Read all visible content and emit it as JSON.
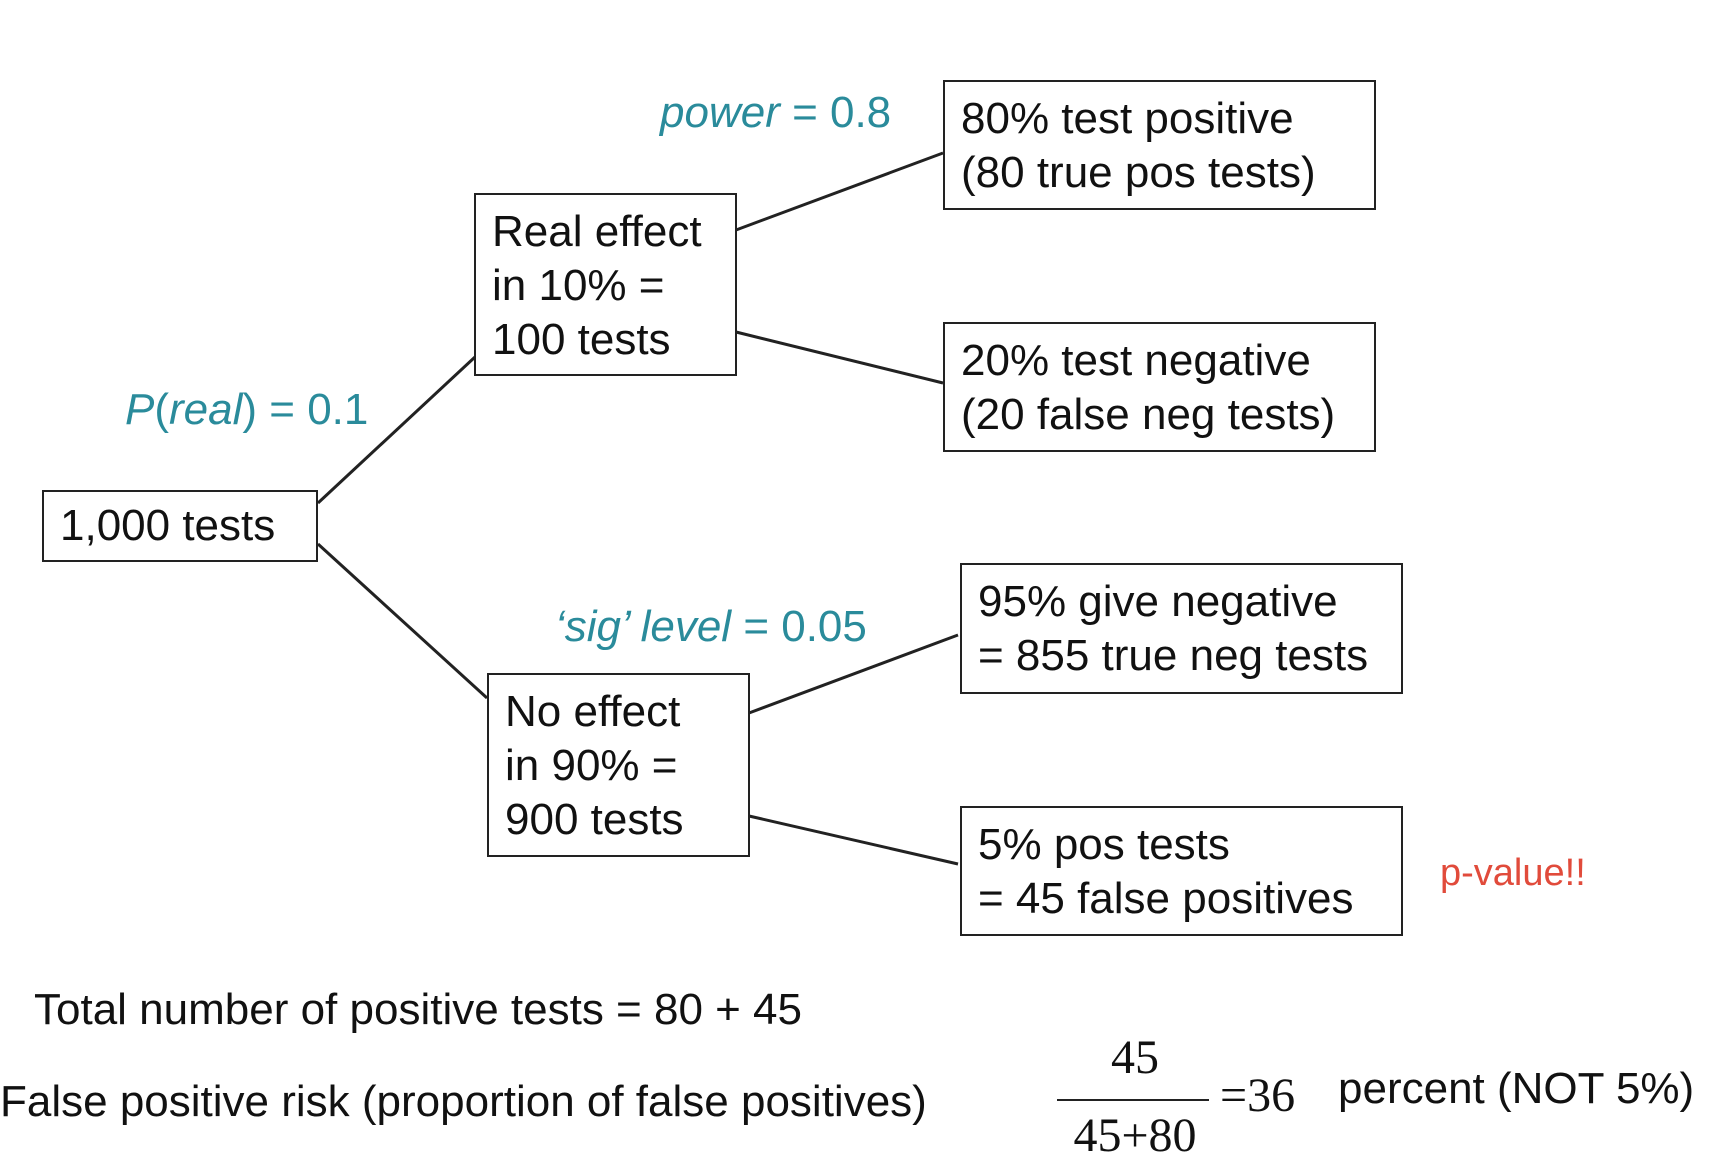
{
  "nodes": {
    "root": [
      "1,000 tests"
    ],
    "real": [
      "Real effect",
      "in 10% =",
      "100 tests"
    ],
    "none": [
      "No effect",
      "in 90%  =",
      "900 tests"
    ],
    "true_pos": [
      "80% test positive",
      "(80 true pos tests)"
    ],
    "false_neg": [
      "20% test negative",
      "(20 false neg tests)"
    ],
    "true_neg": [
      "95% give negative",
      "= 855 true neg tests"
    ],
    "false_pos": [
      "5%  pos tests",
      "= 45 false positives"
    ]
  },
  "edge_labels": {
    "p_real_name": "P",
    "p_real_arg": "real",
    "p_real_value": ") = 0.1",
    "power_name": "power",
    "power_value": " = 0.8",
    "sig_name": "‘sig’ level",
    "sig_value": " = 0.05"
  },
  "note": "p-value!!",
  "footer": {
    "total_line": "Total number of positive tests = 80 + 45",
    "fpr_label": "False positive risk (proportion of false positives)",
    "numerator": "45",
    "denominator": "45+80",
    "equals": "=36",
    "result_text": "percent (NOT 5%)"
  },
  "colors": {
    "probability_label": "#2a8b9b",
    "note": "#e14b3b",
    "line": "#222222"
  }
}
